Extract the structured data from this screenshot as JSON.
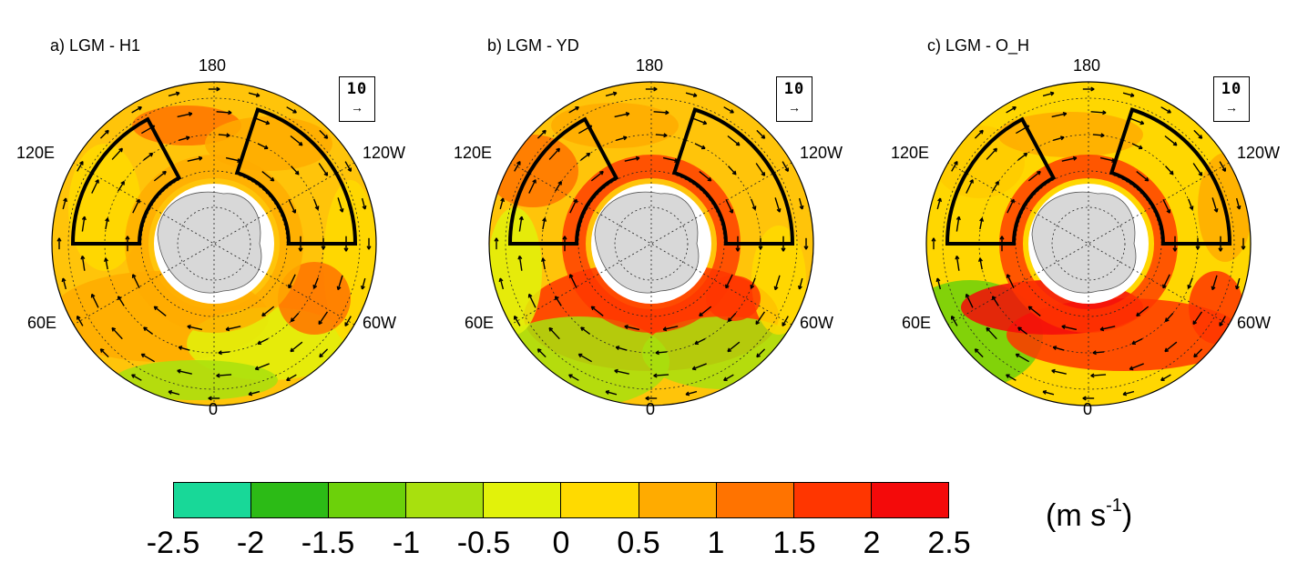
{
  "panels": [
    {
      "id": "a",
      "title": "a) LGM - H1",
      "key_value": "10",
      "key_arrow": "→"
    },
    {
      "id": "b",
      "title": "b) LGM - YD",
      "key_value": "10",
      "key_arrow": "→"
    },
    {
      "id": "c",
      "title": "c) LGM - O_H",
      "key_value": "10",
      "key_arrow": "→"
    }
  ],
  "longitude_labels": {
    "top": "180",
    "bottom": "0",
    "upper_left": "120E",
    "upper_right": "120W",
    "lower_left": "60E",
    "lower_right": "60W"
  },
  "colorbar": {
    "tick_labels": [
      "-2.5",
      "-2",
      "-1.5",
      "-1",
      "-0.5",
      "0",
      "0.5",
      "1",
      "1.5",
      "2",
      "2.5"
    ],
    "colors": [
      "#18d898",
      "#2cbb16",
      "#6cd10a",
      "#a8e00e",
      "#e2f20a",
      "#ffda00",
      "#ffab00",
      "#ff7300",
      "#ff3600",
      "#f40a0a"
    ],
    "units": "(m s",
    "units_exponent": "-1",
    "units_close": ")"
  },
  "colors": {
    "antarctica": "#d8d8d8",
    "ocean_ice": "#ffffff",
    "base_field": "#ffc40a",
    "outline": "#000000"
  }
}
